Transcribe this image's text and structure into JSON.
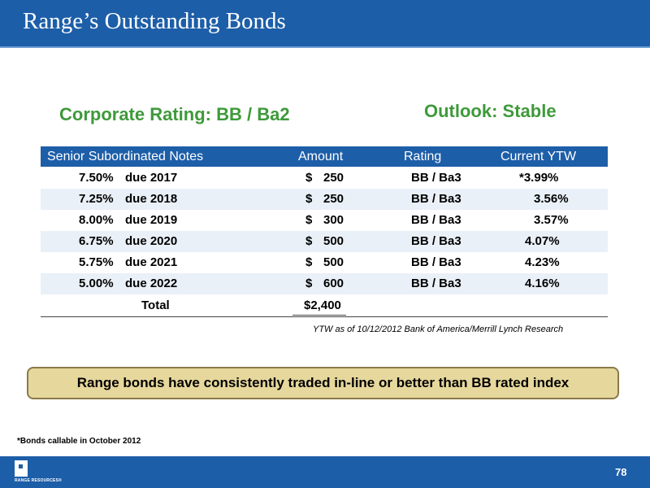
{
  "slide": {
    "title": "Range’s Outstanding Bonds",
    "corporate_rating": "Corporate Rating: BB / Ba2",
    "outlook": "Outlook: Stable"
  },
  "table": {
    "headers": [
      "Senior Subordinated Notes",
      "Amount",
      "Rating",
      "Current YTW"
    ],
    "rows": [
      {
        "rate": "7.50%",
        "due": "due 2017",
        "cur": "$",
        "amount": "250",
        "rating": "BB / Ba3",
        "ytw": "*3.99%"
      },
      {
        "rate": "7.25%",
        "due": "due 2018",
        "cur": "$",
        "amount": "250",
        "rating": "BB / Ba3",
        "ytw": "3.56%"
      },
      {
        "rate": "8.00%",
        "due": "due 2019",
        "cur": "$",
        "amount": "300",
        "rating": "BB / Ba3",
        "ytw": "3.57%"
      },
      {
        "rate": "6.75%",
        "due": "due 2020",
        "cur": "$",
        "amount": "500",
        "rating": "BB / Ba3",
        "ytw": "4.07%"
      },
      {
        "rate": "5.75%",
        "due": "due 2021",
        "cur": "$",
        "amount": "500",
        "rating": "BB / Ba3",
        "ytw": "4.23%"
      },
      {
        "rate": "5.00%",
        "due": "due 2022",
        "cur": "$",
        "amount": "600",
        "rating": "BB / Ba3",
        "ytw": "4.16%"
      }
    ],
    "total_label": "Total",
    "total_amount": "$2,400"
  },
  "source_note": "YTW as of 10/12/2012 Bank of America/Merrill Lynch Research",
  "callout": "Range bonds have consistently traded in-line or better than BB rated index",
  "footnote": "*Bonds callable in October 2012",
  "footer": {
    "logo_text": "RANGE RESOURCES®",
    "page_number": "78"
  },
  "colors": {
    "header_blue": "#1d5ea8",
    "heading_green": "#3e9a3a",
    "callout_fill": "#e6d79c",
    "row_alt": "#eaf0f8"
  }
}
